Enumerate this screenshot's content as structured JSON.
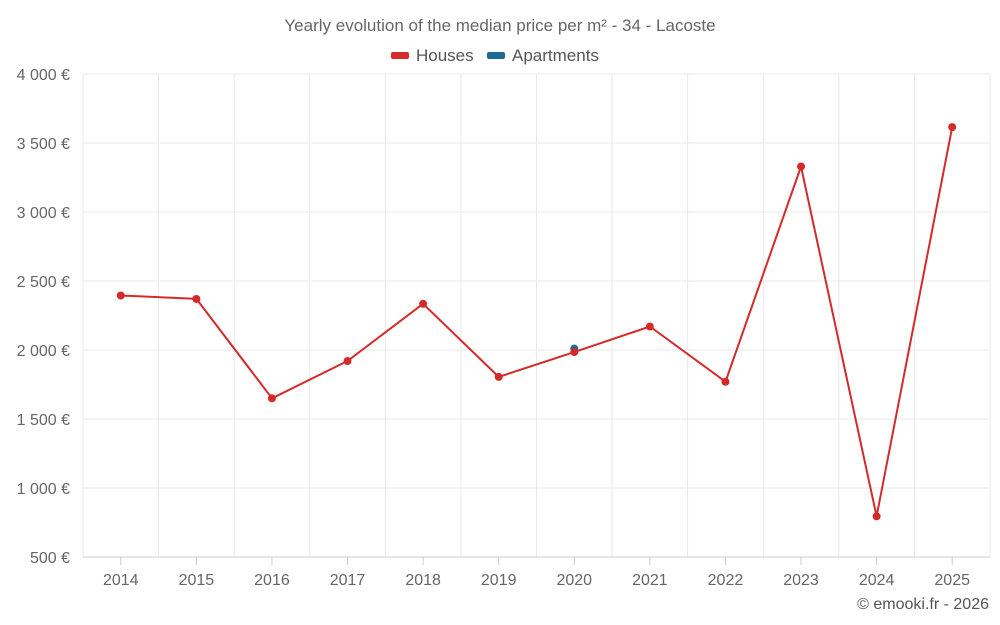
{
  "chart_data": {
    "type": "line",
    "title": "Yearly evolution of the median price per m² - 34 - Lacoste",
    "categories": [
      "2014",
      "2015",
      "2016",
      "2017",
      "2018",
      "2019",
      "2020",
      "2021",
      "2022",
      "2023",
      "2024",
      "2025"
    ],
    "y_ticks": [
      "500 €",
      "1 000 €",
      "1 500 €",
      "2 000 €",
      "2 500 €",
      "3 000 €",
      "3 500 €",
      "4 000 €"
    ],
    "ylim": [
      500,
      4000
    ],
    "grid": true,
    "legend_position": "top-center",
    "series": [
      {
        "name": "Houses",
        "color": "#d42a2a",
        "values": [
          2395,
          2370,
          1650,
          1920,
          2335,
          1805,
          1985,
          2170,
          1770,
          3330,
          795,
          3615
        ]
      },
      {
        "name": "Apartments",
        "color": "#1f6a93",
        "values": [
          null,
          null,
          null,
          null,
          null,
          null,
          2010,
          null,
          null,
          null,
          null,
          null
        ]
      }
    ]
  },
  "credit": "© emooki.fr - 2026"
}
